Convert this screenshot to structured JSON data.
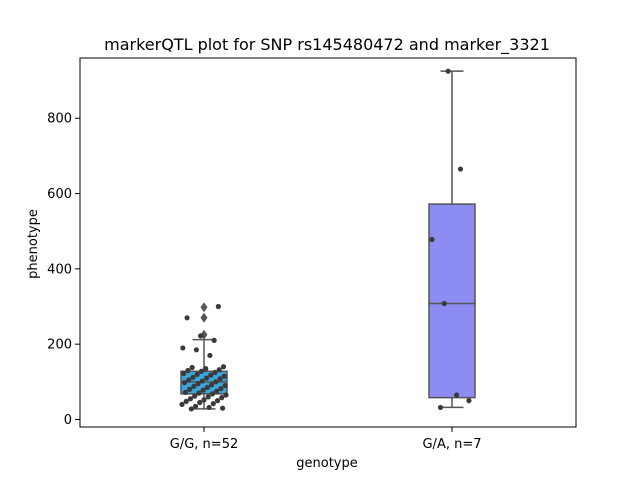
{
  "chart_data": {
    "type": "box",
    "title": "markerQTL plot for SNP rs145480472 and marker_3321",
    "xlabel": "genotype",
    "ylabel": "phenotype",
    "ylim": [
      -20,
      960
    ],
    "yticks": [
      0,
      200,
      400,
      600,
      800
    ],
    "categories": [
      "G/G, n=52",
      "G/A, n=7"
    ],
    "grid": false,
    "legend": "none",
    "boxes": [
      {
        "category": "G/G, n=52",
        "color": "#3aa6dd",
        "q1": 68,
        "median": 100,
        "q3": 128,
        "whisker_low": 28,
        "whisker_high": 212,
        "outliers": [
          225,
          270,
          298
        ]
      },
      {
        "category": "G/A, n=7",
        "color": "#8c8cf2",
        "q1": 58,
        "median": 308,
        "q3": 572,
        "whisker_low": 32,
        "whisker_high": 925,
        "outliers": []
      }
    ],
    "points": [
      {
        "category": "G/G, n=52",
        "values": [
          28,
          30,
          32,
          35,
          40,
          42,
          45,
          48,
          50,
          52,
          55,
          58,
          60,
          62,
          65,
          68,
          70,
          72,
          75,
          78,
          80,
          82,
          85,
          88,
          90,
          92,
          95,
          98,
          100,
          102,
          105,
          108,
          110,
          112,
          115,
          118,
          120,
          122,
          125,
          128,
          130,
          132,
          135,
          138,
          140,
          170,
          185,
          190,
          210,
          222,
          270,
          300
        ]
      },
      {
        "category": "G/A, n=7",
        "values": [
          32,
          50,
          65,
          308,
          478,
          665,
          925
        ]
      }
    ],
    "colors": {
      "point": "#3a3a3a",
      "edge": "#555555"
    }
  }
}
